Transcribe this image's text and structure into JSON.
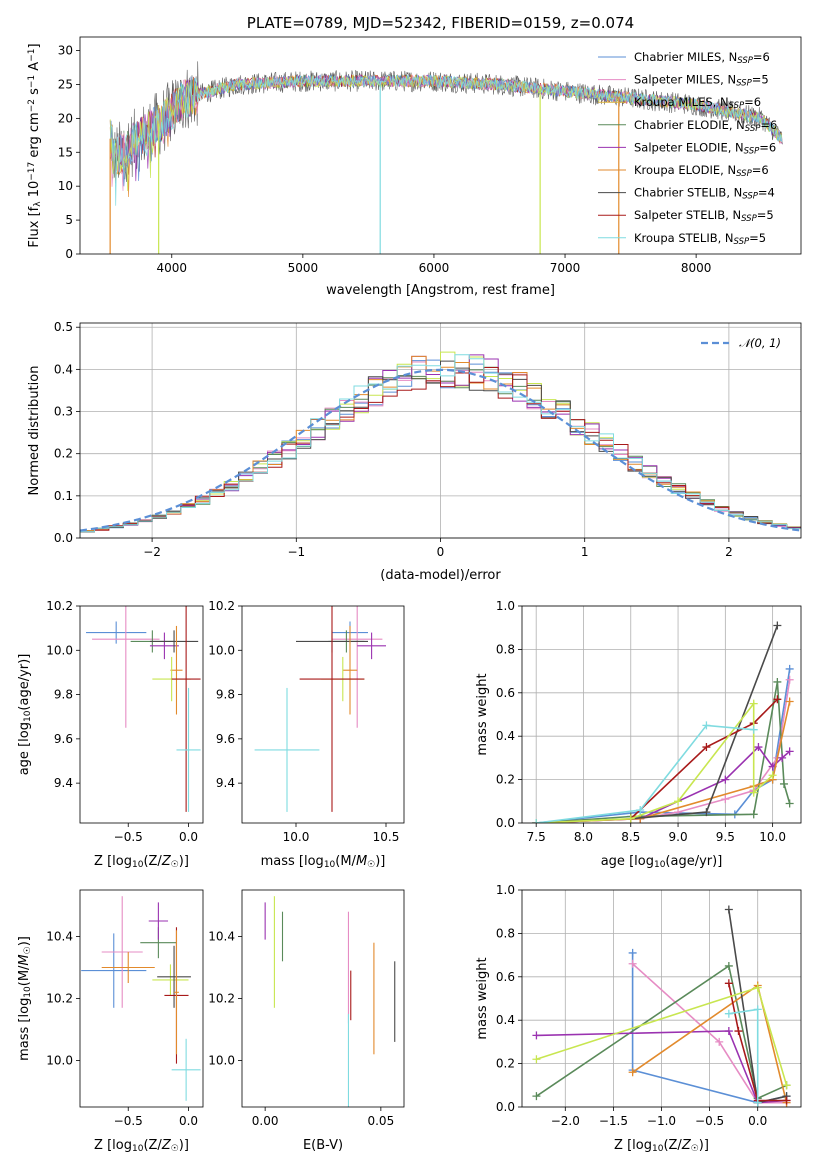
{
  "figure": {
    "colors": {
      "chabrier_miles": "#5b8fd6",
      "salpeter_miles": "#e68cc4",
      "kroupa_miles": "#dbb33c",
      "chabrier_elodie": "#5a8a5a",
      "salpeter_elodie": "#9a32b0",
      "kroupa_elodie": "#e28a2c",
      "chabrier_stelib": "#4a4a4a",
      "salpeter_stelib": "#a81a1a",
      "kroupa_stelib": "#7fdbe0",
      "yellowgreen": "#c8e650",
      "normal_curve": "#5b8fd6"
    }
  },
  "chart_data": [
    {
      "id": "spectrum",
      "type": "line",
      "title": "PLATE=0789, MJD=52342, FIBERID=0159, z=0.074",
      "xlabel": "wavelength [Angstrom, rest frame]",
      "ylabel": "Flux [f_λ 10^-17 erg cm^-2 s^-1 A^-1]",
      "xlim": [
        3300,
        8800
      ],
      "ylim": [
        0,
        32
      ],
      "xticks": [
        4000,
        5000,
        6000,
        7000,
        8000
      ],
      "yticks": [
        0,
        5,
        10,
        15,
        20,
        25,
        30
      ],
      "legend_position": "top-right",
      "legend": [
        {
          "label": "Chabrier MILES, N",
          "sub": "SSP",
          "suffix": "=6",
          "color_key": "chabrier_miles"
        },
        {
          "label": "Salpeter MILES, N",
          "sub": "SSP",
          "suffix": "=5",
          "color_key": "salpeter_miles"
        },
        {
          "label": "Kroupa MILES, N",
          "sub": "SSP",
          "suffix": "=6",
          "color_key": "kroupa_miles"
        },
        {
          "label": "Chabrier ELODIE, N",
          "sub": "SSP",
          "suffix": "=6",
          "color_key": "chabrier_elodie"
        },
        {
          "label": "Salpeter ELODIE, N",
          "sub": "SSP",
          "suffix": "=6",
          "color_key": "salpeter_elodie"
        },
        {
          "label": "Kroupa ELODIE, N",
          "sub": "SSP",
          "suffix": "=6",
          "color_key": "kroupa_elodie"
        },
        {
          "label": "Chabrier STELIB, N",
          "sub": "SSP",
          "suffix": "=4",
          "color_key": "chabrier_stelib"
        },
        {
          "label": "Salpeter STELIB, N",
          "sub": "SSP",
          "suffix": "=5",
          "color_key": "salpeter_stelib"
        },
        {
          "label": "Kroupa STELIB, N",
          "sub": "SSP",
          "suffix": "=5",
          "color_key": "kroupa_stelib"
        }
      ],
      "continuum_anchor_points": [
        [
          3550,
          14
        ],
        [
          3750,
          17
        ],
        [
          3950,
          20
        ],
        [
          4100,
          23
        ],
        [
          4500,
          25
        ],
        [
          5000,
          25.5
        ],
        [
          5500,
          25.5
        ],
        [
          6000,
          25.5
        ],
        [
          6500,
          25
        ],
        [
          7000,
          24
        ],
        [
          7500,
          23
        ],
        [
          8000,
          22
        ],
        [
          8500,
          20
        ],
        [
          8650,
          17
        ]
      ],
      "drops": [
        {
          "x": 3530,
          "color_key": "kroupa_elodie"
        },
        {
          "x": 3900,
          "color_key": "yellowgreen"
        },
        {
          "x": 5590,
          "color_key": "kroupa_stelib"
        },
        {
          "x": 6810,
          "color_key": "yellowgreen"
        },
        {
          "x": 7410,
          "color_key": "kroupa_elodie"
        }
      ]
    },
    {
      "id": "residuals",
      "type": "histogram",
      "xlabel": "(data-model)/error",
      "ylabel": "Normed distribution",
      "xlim": [
        -2.5,
        2.5
      ],
      "ylim": [
        0,
        0.51
      ],
      "xticks": [
        -2,
        -1,
        0,
        1,
        2
      ],
      "yticks": [
        0.0,
        0.1,
        0.2,
        0.3,
        0.4,
        0.5
      ],
      "grid": true,
      "legend_position": "top-right",
      "normal_label": "𝒩(0, 1)",
      "bin_width": 0.1
    },
    {
      "id": "z_age",
      "type": "scatter",
      "xlabel": "Z [log10(Z/Z☉)]",
      "ylabel": "age  [log10(age/yr)]",
      "xlim": [
        -0.9,
        0.12
      ],
      "ylim": [
        9.22,
        10.2
      ],
      "xticks": [
        -0.5,
        0.0
      ],
      "yticks": [
        9.4,
        9.6,
        9.8,
        10.0,
        10.2
      ],
      "points": [
        {
          "x": -0.6,
          "xerr": 0.25,
          "y": 10.08,
          "yerr": 0.05,
          "color_key": "chabrier_miles"
        },
        {
          "x": -0.52,
          "xerr": 0.28,
          "y": 10.05,
          "yerr": 0.4,
          "color_key": "salpeter_miles"
        },
        {
          "x": -0.3,
          "xerr": 0.18,
          "y": 10.04,
          "yerr": 0.05,
          "color_key": "chabrier_elodie"
        },
        {
          "x": -0.2,
          "xerr": 0.12,
          "y": 10.02,
          "yerr": 0.06,
          "color_key": "salpeter_elodie"
        },
        {
          "x": -0.12,
          "xerr": 0.2,
          "y": 10.04,
          "yerr": 0.05,
          "color_key": "chabrier_stelib"
        },
        {
          "x": -0.1,
          "xerr": 0.05,
          "y": 9.91,
          "yerr": 0.2,
          "color_key": "kroupa_elodie"
        },
        {
          "x": -0.14,
          "xerr": 0.16,
          "y": 9.87,
          "yerr": 0.1,
          "color_key": "yellowgreen"
        },
        {
          "x": -0.02,
          "xerr": 0.12,
          "y": 9.87,
          "yerr": 0.6,
          "color_key": "salpeter_stelib"
        },
        {
          "x": 0.0,
          "xerr": 0.1,
          "y": 9.55,
          "yerr": 0.28,
          "color_key": "kroupa_stelib"
        }
      ]
    },
    {
      "id": "mass_age",
      "type": "scatter",
      "xlabel": "mass [log10(M/M☉)]",
      "ylabel": "",
      "xlim": [
        9.7,
        10.6
      ],
      "ylim": [
        9.22,
        10.2
      ],
      "xticks": [
        10.0,
        10.5
      ],
      "yticks": [
        9.4,
        9.6,
        9.8,
        10.0,
        10.2
      ],
      "points": [
        {
          "x": 10.3,
          "xerr": 0.1,
          "y": 10.08,
          "yerr": 0.05,
          "color_key": "chabrier_miles"
        },
        {
          "x": 10.34,
          "xerr": 0.14,
          "y": 10.05,
          "yerr": 0.4,
          "color_key": "salpeter_miles"
        },
        {
          "x": 10.28,
          "xerr": 0.1,
          "y": 10.04,
          "yerr": 0.05,
          "color_key": "chabrier_elodie"
        },
        {
          "x": 10.42,
          "xerr": 0.08,
          "y": 10.02,
          "yerr": 0.06,
          "color_key": "salpeter_elodie"
        },
        {
          "x": 10.2,
          "xerr": 0.2,
          "y": 10.04,
          "yerr": 0.05,
          "color_key": "chabrier_stelib"
        },
        {
          "x": 10.3,
          "xerr": 0.04,
          "y": 9.91,
          "yerr": 0.2,
          "color_key": "kroupa_elodie"
        },
        {
          "x": 10.26,
          "xerr": 0.12,
          "y": 9.87,
          "yerr": 0.1,
          "color_key": "yellowgreen"
        },
        {
          "x": 10.2,
          "xerr": 0.18,
          "y": 9.87,
          "yerr": 0.6,
          "color_key": "salpeter_stelib"
        },
        {
          "x": 9.95,
          "xerr": 0.18,
          "y": 9.55,
          "yerr": 0.28,
          "color_key": "kroupa_stelib"
        }
      ]
    },
    {
      "id": "age_weight",
      "type": "line",
      "xlabel": "age  [log10(age/yr)]",
      "ylabel": "mass weight",
      "xlim": [
        7.35,
        10.3
      ],
      "ylim": [
        0,
        1
      ],
      "xticks": [
        7.5,
        8.0,
        8.5,
        9.0,
        9.5,
        10.0
      ],
      "yticks": [
        0.0,
        0.2,
        0.4,
        0.6,
        0.8,
        1.0
      ],
      "grid": true,
      "series": [
        {
          "color_key": "chabrier_miles",
          "x": [
            7.5,
            8.6,
            9.6,
            9.8,
            10.0,
            10.18
          ],
          "y": [
            0.0,
            0.05,
            0.04,
            0.15,
            0.2,
            0.71
          ]
        },
        {
          "color_key": "salpeter_miles",
          "x": [
            7.5,
            8.6,
            9.0,
            9.5,
            9.8,
            10.05,
            10.18
          ],
          "y": [
            0.0,
            0.02,
            0.05,
            0.11,
            0.15,
            0.3,
            0.66
          ]
        },
        {
          "color_key": "chabrier_elodie",
          "x": [
            7.5,
            8.5,
            9.8,
            10.05,
            10.12,
            10.18
          ],
          "y": [
            0.0,
            0.03,
            0.04,
            0.65,
            0.18,
            0.09
          ]
        },
        {
          "color_key": "salpeter_elodie",
          "x": [
            7.5,
            8.6,
            9.5,
            9.85,
            10.0,
            10.1,
            10.18
          ],
          "y": [
            0.0,
            0.02,
            0.2,
            0.35,
            0.26,
            0.3,
            0.33
          ]
        },
        {
          "color_key": "kroupa_elodie",
          "x": [
            7.5,
            8.6,
            9.8,
            10.0,
            10.18
          ],
          "y": [
            0.0,
            0.02,
            0.17,
            0.2,
            0.56
          ]
        },
        {
          "color_key": "chabrier_stelib",
          "x": [
            8.5,
            9.3,
            10.05
          ],
          "y": [
            0.02,
            0.05,
            0.91
          ]
        },
        {
          "color_key": "salpeter_stelib",
          "x": [
            8.5,
            9.3,
            9.8,
            10.05
          ],
          "y": [
            0.02,
            0.35,
            0.46,
            0.57
          ]
        },
        {
          "color_key": "yellowgreen",
          "x": [
            7.5,
            8.5,
            9.0,
            9.8,
            9.8,
            10.0
          ],
          "y": [
            0.0,
            0.02,
            0.1,
            0.55,
            0.14,
            0.22
          ]
        },
        {
          "color_key": "kroupa_stelib",
          "x": [
            7.5,
            8.6,
            9.3,
            9.8
          ],
          "y": [
            0.0,
            0.06,
            0.45,
            0.43
          ]
        }
      ]
    },
    {
      "id": "z_mass",
      "type": "scatter",
      "xlabel": "Z [log10(Z/Z☉)]",
      "ylabel": "mass [log10(M/M☉)]",
      "xlim": [
        -0.9,
        0.12
      ],
      "ylim": [
        9.85,
        10.55
      ],
      "xticks": [
        -0.5,
        0.0
      ],
      "yticks": [
        10.0,
        10.2,
        10.4
      ],
      "points": [
        {
          "x": -0.62,
          "xerr": 0.27,
          "y": 10.29,
          "yerr": 0.12,
          "color_key": "chabrier_miles"
        },
        {
          "x": -0.55,
          "xerr": 0.17,
          "y": 10.35,
          "yerr": 0.18,
          "color_key": "salpeter_miles"
        },
        {
          "x": -0.5,
          "xerr": 0.22,
          "y": 10.3,
          "yerr": 0.05,
          "color_key": "kroupa_elodie"
        },
        {
          "x": -0.25,
          "xerr": 0.15,
          "y": 10.38,
          "yerr": 0.05,
          "color_key": "chabrier_elodie"
        },
        {
          "x": -0.25,
          "xerr": 0.08,
          "y": 10.45,
          "yerr": 0.06,
          "color_key": "salpeter_elodie"
        },
        {
          "x": -0.15,
          "xerr": 0.15,
          "y": 10.26,
          "yerr": 0.05,
          "color_key": "yellowgreen"
        },
        {
          "x": -0.12,
          "xerr": 0.14,
          "y": 10.27,
          "yerr": 0.1,
          "color_key": "chabrier_stelib"
        },
        {
          "x": -0.1,
          "xerr": 0.1,
          "y": 10.21,
          "yerr": 0.22,
          "color_key": "salpeter_stelib"
        },
        {
          "x": -0.1,
          "xerr": 0.02,
          "y": 10.22,
          "yerr": 0.2,
          "color_key": "kroupa_elodie"
        },
        {
          "x": -0.02,
          "xerr": 0.12,
          "y": 9.97,
          "yerr": 0.1,
          "color_key": "kroupa_stelib"
        }
      ]
    },
    {
      "id": "ebv_mass",
      "type": "scatter",
      "xlabel": "E(B-V)",
      "ylabel": "",
      "xlim": [
        -0.01,
        0.06
      ],
      "ylim": [
        9.85,
        10.55
      ],
      "xticks": [
        0.0,
        0.05
      ],
      "yticks": [
        10.0,
        10.2,
        10.4
      ],
      "points": [
        {
          "x": 0.0,
          "xerr": 0,
          "y": 10.45,
          "yerr": 0.06,
          "color_key": "salpeter_elodie"
        },
        {
          "x": 0.004,
          "xerr": 0,
          "y": 10.35,
          "yerr": 0.18,
          "color_key": "yellowgreen"
        },
        {
          "x": 0.0075,
          "xerr": 0,
          "y": 10.4,
          "yerr": 0.08,
          "color_key": "chabrier_elodie"
        },
        {
          "x": 0.036,
          "xerr": 0,
          "y": 10.3,
          "yerr": 0.18,
          "color_key": "salpeter_miles"
        },
        {
          "x": 0.036,
          "xerr": 0,
          "y": 10.0,
          "yerr": 0.15,
          "color_key": "kroupa_stelib"
        },
        {
          "x": 0.037,
          "xerr": 0,
          "y": 10.21,
          "yerr": 0.08,
          "color_key": "salpeter_stelib"
        },
        {
          "x": 0.047,
          "xerr": 0,
          "y": 10.2,
          "yerr": 0.18,
          "color_key": "kroupa_elodie"
        },
        {
          "x": 0.056,
          "xerr": 0,
          "y": 10.19,
          "yerr": 0.13,
          "color_key": "chabrier_stelib"
        }
      ]
    },
    {
      "id": "z_weight",
      "type": "line",
      "xlabel": "Z [log10(Z/Z☉)]",
      "ylabel": "mass weight",
      "xlim": [
        -2.45,
        0.45
      ],
      "ylim": [
        0,
        1
      ],
      "xticks": [
        -2.0,
        -1.5,
        -1.0,
        -0.5,
        0.0
      ],
      "yticks": [
        0.0,
        0.2,
        0.4,
        0.6,
        0.8,
        1.0
      ],
      "grid": true,
      "series": [
        {
          "color_key": "chabrier_miles",
          "x": [
            -1.3,
            -1.3,
            0.0,
            0.3
          ],
          "y": [
            0.71,
            0.17,
            0.02,
            0.05
          ]
        },
        {
          "color_key": "salpeter_miles",
          "x": [
            -1.3,
            -0.4,
            0.0,
            0.3
          ],
          "y": [
            0.66,
            0.3,
            0.02,
            0.02
          ]
        },
        {
          "color_key": "chabrier_elodie",
          "x": [
            -2.3,
            -0.3,
            0.0,
            0.3
          ],
          "y": [
            0.05,
            0.65,
            0.04,
            0.1
          ]
        },
        {
          "color_key": "salpeter_elodie",
          "x": [
            -2.3,
            -0.3,
            0.0,
            0.3
          ],
          "y": [
            0.33,
            0.35,
            0.02,
            0.03
          ]
        },
        {
          "color_key": "kroupa_elodie",
          "x": [
            -1.3,
            0.0,
            0.3
          ],
          "y": [
            0.16,
            0.56,
            0.02
          ]
        },
        {
          "color_key": "chabrier_stelib",
          "x": [
            -0.3,
            0.0,
            0.3
          ],
          "y": [
            0.91,
            0.02,
            0.05
          ]
        },
        {
          "color_key": "salpeter_stelib",
          "x": [
            -0.3,
            -0.2,
            0.0,
            0.3
          ],
          "y": [
            0.57,
            0.35,
            0.03,
            0.03
          ]
        },
        {
          "color_key": "yellowgreen",
          "x": [
            -2.3,
            0.0,
            0.3
          ],
          "y": [
            0.22,
            0.55,
            0.1
          ]
        },
        {
          "color_key": "kroupa_stelib",
          "x": [
            -0.3,
            0.0,
            0.0
          ],
          "y": [
            0.43,
            0.45,
            0.02
          ]
        }
      ]
    }
  ]
}
